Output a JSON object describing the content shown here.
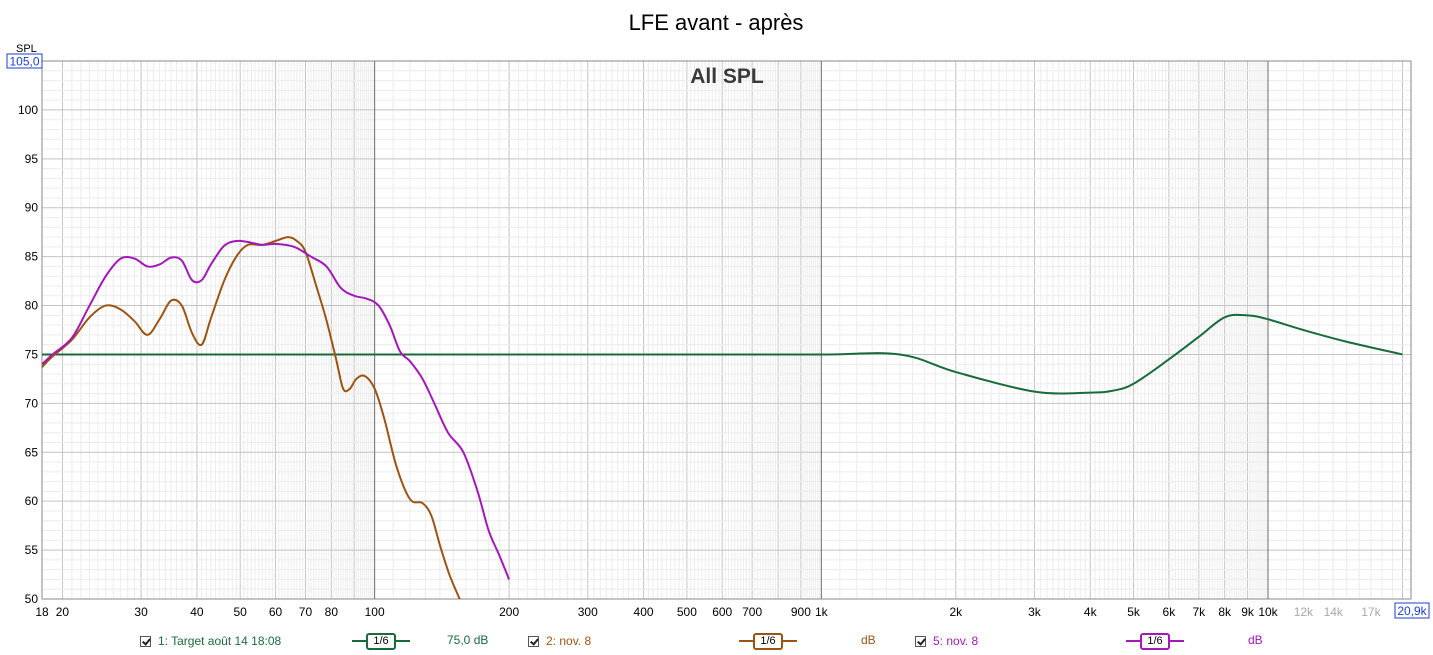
{
  "chart_data": {
    "type": "line",
    "title": "LFE avant - après",
    "subtitle": "All SPL",
    "ylabel": "SPL",
    "x_scale": "log",
    "xlim": [
      18,
      20900
    ],
    "ylim": [
      50,
      105
    ],
    "ylim_max_label": "105,0",
    "xlim_max_label": "20,9k",
    "y_ticks": [
      50,
      55,
      60,
      65,
      70,
      75,
      80,
      85,
      90,
      95,
      100
    ],
    "x_ticks": [
      {
        "value": 18,
        "label": "18",
        "style": "major"
      },
      {
        "value": 20,
        "label": "20",
        "style": "major"
      },
      {
        "value": 30,
        "label": "30",
        "style": "major"
      },
      {
        "value": 40,
        "label": "40",
        "style": "major"
      },
      {
        "value": 50,
        "label": "50",
        "style": "major"
      },
      {
        "value": 60,
        "label": "60",
        "style": "major"
      },
      {
        "value": 70,
        "label": "70",
        "style": "major"
      },
      {
        "value": 80,
        "label": "80",
        "style": "major"
      },
      {
        "value": 100,
        "label": "100",
        "style": "major"
      },
      {
        "value": 200,
        "label": "200",
        "style": "major"
      },
      {
        "value": 300,
        "label": "300",
        "style": "major"
      },
      {
        "value": 400,
        "label": "400",
        "style": "major"
      },
      {
        "value": 500,
        "label": "500",
        "style": "major"
      },
      {
        "value": 600,
        "label": "600",
        "style": "major"
      },
      {
        "value": 700,
        "label": "700",
        "style": "major"
      },
      {
        "value": 900,
        "label": "900",
        "style": "major"
      },
      {
        "value": 1000,
        "label": "1k",
        "style": "major"
      },
      {
        "value": 2000,
        "label": "2k",
        "style": "major"
      },
      {
        "value": 3000,
        "label": "3k",
        "style": "major"
      },
      {
        "value": 4000,
        "label": "4k",
        "style": "major"
      },
      {
        "value": 5000,
        "label": "5k",
        "style": "major"
      },
      {
        "value": 6000,
        "label": "6k",
        "style": "major"
      },
      {
        "value": 7000,
        "label": "7k",
        "style": "major"
      },
      {
        "value": 8000,
        "label": "8k",
        "style": "major"
      },
      {
        "value": 9000,
        "label": "9k",
        "style": "major"
      },
      {
        "value": 10000,
        "label": "10k",
        "style": "major"
      },
      {
        "value": 12000,
        "label": "12k",
        "style": "minor"
      },
      {
        "value": 14000,
        "label": "14k",
        "style": "minor"
      },
      {
        "value": 17000,
        "label": "17k",
        "style": "minor"
      }
    ],
    "grid": true,
    "legend_position": "bottom",
    "series": [
      {
        "name": "1: Target août 14 18:08",
        "color": "#1a6b3c",
        "smoothing": "1/6",
        "value_label": "75,0 dB",
        "x": [
          18,
          20,
          30,
          50,
          100,
          500,
          1000,
          1500,
          2000,
          3000,
          4000,
          4500,
          5000,
          6000,
          7000,
          8000,
          9000,
          10000,
          12000,
          15000,
          20000
        ],
        "y": [
          75,
          75,
          75,
          75,
          75,
          75,
          75,
          75,
          73.2,
          71.2,
          71.1,
          71.3,
          72,
          74.5,
          76.8,
          78.8,
          79,
          78.6,
          77.5,
          76.3,
          75
        ]
      },
      {
        "name": "2: nov. 8",
        "color": "#9c5412",
        "smoothing": "1/6",
        "value_label": "dB",
        "x": [
          18,
          19,
          21,
          23,
          25,
          27,
          29,
          31,
          33,
          35,
          37,
          39,
          41,
          43,
          46,
          49,
          52,
          56,
          60,
          64,
          67,
          70,
          74,
          78,
          82,
          85,
          88,
          91,
          95,
          100,
          105,
          112,
          120,
          128,
          134,
          140,
          147,
          155
        ],
        "y": [
          73.7,
          74.8,
          76.5,
          78.8,
          80,
          79.6,
          78.4,
          77,
          78.6,
          80.5,
          80,
          77.2,
          76,
          78.7,
          82.5,
          85,
          86.2,
          86.2,
          86.6,
          87,
          86.6,
          85.5,
          82,
          78.5,
          74.5,
          71.5,
          71.5,
          72.5,
          72.8,
          71.5,
          68.5,
          63.5,
          60.2,
          59.8,
          58.5,
          55.5,
          52.5,
          50
        ]
      },
      {
        "name": "5: nov. 8",
        "color": "#a318b8",
        "smoothing": "1/6",
        "value_label": "dB",
        "x": [
          18,
          19,
          21,
          23,
          25,
          27,
          29,
          31,
          33,
          35,
          37,
          39,
          41,
          43,
          46,
          49,
          52,
          56,
          60,
          66,
          72,
          78,
          84,
          90,
          96,
          102,
          108,
          114,
          120,
          128,
          136,
          146,
          158,
          170,
          180,
          190,
          200
        ],
        "y": [
          74,
          75,
          76.7,
          80,
          83,
          84.8,
          84.8,
          84,
          84.2,
          84.9,
          84.6,
          82.6,
          82.6,
          84.2,
          86.1,
          86.6,
          86.5,
          86.2,
          86.3,
          86,
          85,
          84,
          81.8,
          81,
          80.7,
          80,
          78,
          75.3,
          74.3,
          72.5,
          70,
          67,
          65,
          61,
          57,
          54.5,
          52
        ]
      }
    ]
  }
}
